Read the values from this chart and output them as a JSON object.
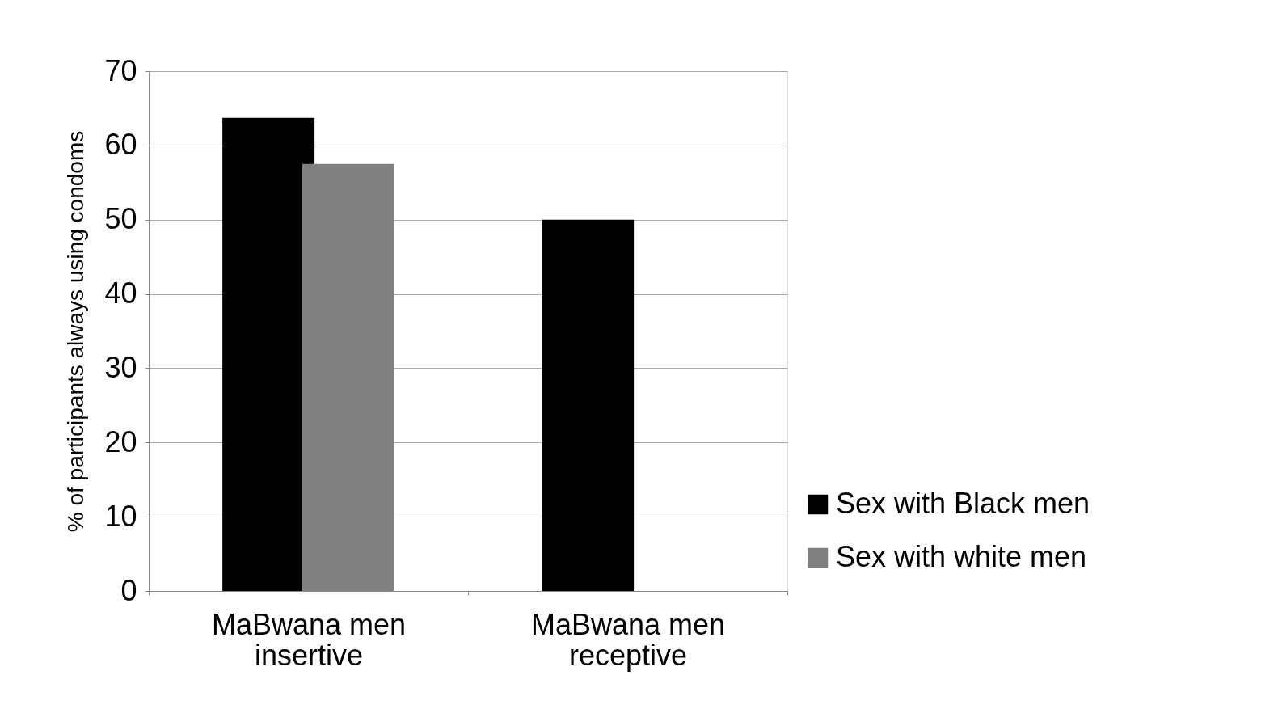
{
  "chart_data": {
    "type": "bar",
    "ylabel": "% of participants always using condoms",
    "categories": [
      "MaBwana men\ninsertive",
      "MaBwana men\nreceptive"
    ],
    "series": [
      {
        "name": "Sex with Black men",
        "color": "#000000",
        "values": [
          63.7,
          50
        ]
      },
      {
        "name": "Sex with white men",
        "color": "#808080",
        "values": [
          57.5,
          null
        ]
      }
    ],
    "ylim": [
      0,
      70
    ],
    "yticks": [
      0,
      10,
      20,
      30,
      40,
      50,
      60,
      70
    ],
    "grid": "y",
    "legend": "bottom right"
  }
}
